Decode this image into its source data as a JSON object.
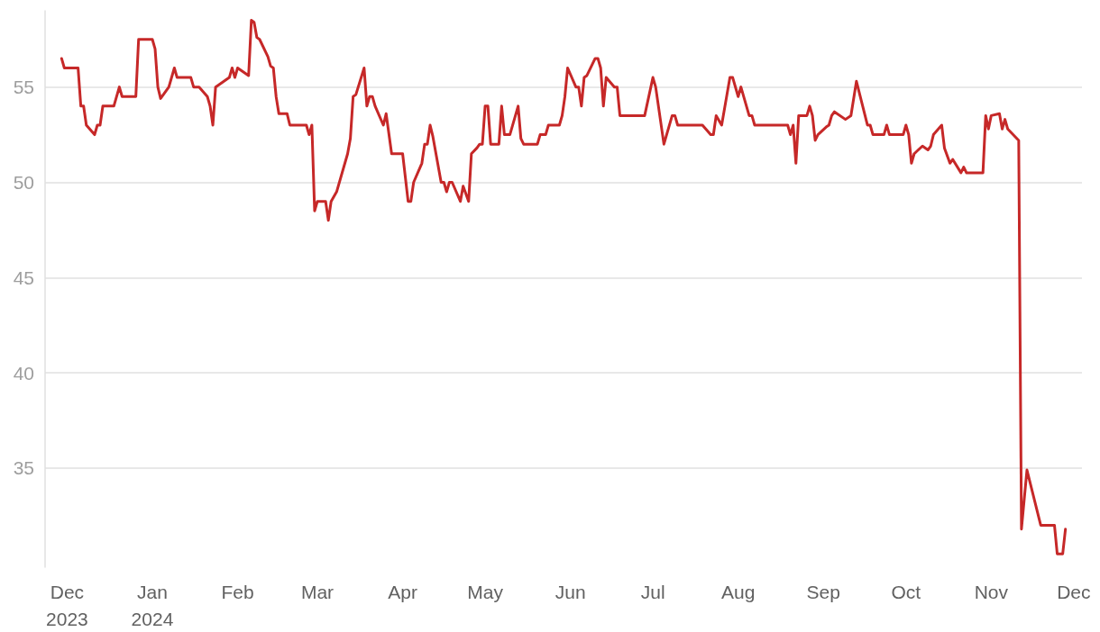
{
  "chart_data": {
    "type": "line",
    "x": [
      "2023-11-29",
      "2023-11-30",
      "2023-12-05",
      "2023-12-06",
      "2023-12-07",
      "2023-12-08",
      "2023-12-11",
      "2023-12-12",
      "2023-12-13",
      "2023-12-14",
      "2023-12-18",
      "2023-12-20",
      "2023-12-21",
      "2023-12-26",
      "2023-12-27",
      "2024-01-01",
      "2024-01-02",
      "2024-01-03",
      "2024-01-04",
      "2024-01-07",
      "2024-01-09",
      "2024-01-10",
      "2024-01-15",
      "2024-01-16",
      "2024-01-18",
      "2024-01-21",
      "2024-01-22",
      "2024-01-23",
      "2024-01-24",
      "2024-01-29",
      "2024-01-30",
      "2024-01-31",
      "2024-02-01",
      "2024-02-05",
      "2024-02-06",
      "2024-02-07",
      "2024-02-08",
      "2024-02-09",
      "2024-02-12",
      "2024-02-13",
      "2024-02-14",
      "2024-02-15",
      "2024-02-16",
      "2024-02-19",
      "2024-02-20",
      "2024-02-26",
      "2024-02-27",
      "2024-02-28",
      "2024-02-29",
      "2024-03-01",
      "2024-03-04",
      "2024-03-05",
      "2024-03-06",
      "2024-03-08",
      "2024-03-12",
      "2024-03-13",
      "2024-03-14",
      "2024-03-15",
      "2024-03-18",
      "2024-03-19",
      "2024-03-20",
      "2024-03-21",
      "2024-03-22",
      "2024-03-25",
      "2024-03-26",
      "2024-03-28",
      "2024-04-01",
      "2024-04-03",
      "2024-04-04",
      "2024-04-05",
      "2024-04-08",
      "2024-04-09",
      "2024-04-10",
      "2024-04-11",
      "2024-04-12",
      "2024-04-15",
      "2024-04-16",
      "2024-04-17",
      "2024-04-18",
      "2024-04-19",
      "2024-04-22",
      "2024-04-23",
      "2024-04-25",
      "2024-04-26",
      "2024-04-28",
      "2024-04-29",
      "2024-04-30",
      "2024-05-01",
      "2024-05-02",
      "2024-05-03",
      "2024-05-06",
      "2024-05-07",
      "2024-05-08",
      "2024-05-10",
      "2024-05-13",
      "2024-05-14",
      "2024-05-15",
      "2024-05-20",
      "2024-05-21",
      "2024-05-23",
      "2024-05-24",
      "2024-05-28",
      "2024-05-29",
      "2024-05-30",
      "2024-05-31",
      "2024-06-03",
      "2024-06-04",
      "2024-06-05",
      "2024-06-06",
      "2024-06-07",
      "2024-06-10",
      "2024-06-11",
      "2024-06-12",
      "2024-06-13",
      "2024-06-14",
      "2024-06-17",
      "2024-06-18",
      "2024-06-19",
      "2024-06-28",
      "2024-07-01",
      "2024-07-02",
      "2024-07-05",
      "2024-07-08",
      "2024-07-09",
      "2024-07-10",
      "2024-07-19",
      "2024-07-22",
      "2024-07-23",
      "2024-07-24",
      "2024-07-26",
      "2024-07-29",
      "2024-07-30",
      "2024-08-01",
      "2024-08-02",
      "2024-08-05",
      "2024-08-06",
      "2024-08-07",
      "2024-08-15",
      "2024-08-19",
      "2024-08-20",
      "2024-08-21",
      "2024-08-22",
      "2024-08-23",
      "2024-08-26",
      "2024-08-27",
      "2024-08-28",
      "2024-08-29",
      "2024-08-30",
      "2024-09-02",
      "2024-09-03",
      "2024-09-04",
      "2024-09-05",
      "2024-09-09",
      "2024-09-11",
      "2024-09-13",
      "2024-09-17",
      "2024-09-18",
      "2024-09-19",
      "2024-09-23",
      "2024-09-24",
      "2024-09-25",
      "2024-09-30",
      "2024-10-01",
      "2024-10-02",
      "2024-10-03",
      "2024-10-04",
      "2024-10-07",
      "2024-10-09",
      "2024-10-10",
      "2024-10-11",
      "2024-10-14",
      "2024-10-15",
      "2024-10-17",
      "2024-10-18",
      "2024-10-21",
      "2024-10-22",
      "2024-10-23",
      "2024-10-29",
      "2024-10-30",
      "2024-10-31",
      "2024-11-01",
      "2024-11-04",
      "2024-11-05",
      "2024-11-06",
      "2024-11-07",
      "2024-11-11",
      "2024-11-12",
      "2024-11-14",
      "2024-11-19",
      "2024-11-20",
      "2024-11-24",
      "2024-11-25",
      "2024-11-27",
      "2024-11-28"
    ],
    "series": [
      {
        "color": "#c62828",
        "values": [
          56.5,
          56.0,
          56.0,
          54.0,
          54.0,
          53.0,
          52.5,
          53.0,
          53.0,
          54.0,
          54.0,
          55.0,
          54.5,
          54.5,
          57.5,
          57.5,
          57.0,
          55.0,
          54.4,
          55.0,
          56.0,
          55.5,
          55.5,
          55.0,
          55.0,
          54.5,
          54.0,
          53.0,
          55.0,
          55.5,
          56.0,
          55.5,
          56.0,
          55.6,
          58.5,
          58.4,
          57.6,
          57.5,
          56.6,
          56.1,
          56.0,
          54.5,
          53.6,
          53.6,
          53.0,
          53.0,
          52.5,
          53.0,
          48.5,
          49.0,
          49.0,
          48.0,
          49.0,
          49.5,
          51.5,
          52.3,
          54.5,
          54.6,
          56.0,
          54.0,
          54.5,
          54.5,
          54.0,
          53.0,
          53.6,
          51.5,
          51.5,
          49.0,
          49.0,
          50.0,
          51.0,
          52.0,
          52.0,
          53.0,
          52.4,
          50.0,
          50.0,
          49.5,
          50.0,
          50.0,
          49.0,
          49.8,
          49.0,
          51.5,
          51.8,
          52.0,
          52.0,
          54.0,
          54.0,
          52.0,
          52.0,
          54.0,
          52.5,
          52.5,
          54.0,
          52.3,
          52.0,
          52.0,
          52.5,
          52.5,
          53.0,
          53.0,
          53.5,
          54.5,
          56.0,
          55.0,
          55.0,
          54.0,
          55.5,
          55.6,
          56.5,
          56.5,
          56.0,
          54.0,
          55.5,
          55.0,
          55.0,
          53.5,
          53.5,
          55.5,
          55.0,
          52.0,
          53.5,
          53.5,
          53.0,
          53.0,
          52.5,
          52.5,
          53.5,
          53.0,
          55.5,
          55.5,
          54.5,
          55.0,
          53.5,
          53.5,
          53.0,
          53.0,
          53.0,
          52.5,
          53.0,
          51.0,
          53.5,
          53.5,
          54.0,
          53.5,
          52.2,
          52.5,
          52.9,
          53.0,
          53.5,
          53.7,
          53.3,
          53.5,
          55.3,
          53.0,
          53.0,
          52.5,
          52.5,
          53.0,
          52.5,
          52.5,
          53.0,
          52.5,
          51.0,
          51.5,
          51.9,
          51.7,
          51.9,
          52.5,
          53.0,
          51.8,
          51.0,
          51.2,
          50.5,
          50.8,
          50.5,
          50.5,
          53.5,
          52.8,
          53.5,
          53.6,
          52.8,
          53.3,
          52.8,
          52.2,
          31.8,
          34.9,
          32.0,
          32.0,
          32.0,
          30.5,
          30.5,
          31.8
        ]
      }
    ],
    "xlim": [
      "2023-11-23",
      "2024-12-04"
    ],
    "xticks": [
      {
        "value": "2023-12-01",
        "label": "Dec\n2023"
      },
      {
        "value": "2024-01-01",
        "label": "Jan\n2024"
      },
      {
        "value": "2024-02-01",
        "label": "Feb"
      },
      {
        "value": "2024-03-01",
        "label": "Mar"
      },
      {
        "value": "2024-04-01",
        "label": "Apr"
      },
      {
        "value": "2024-05-01",
        "label": "May"
      },
      {
        "value": "2024-06-01",
        "label": "Jun"
      },
      {
        "value": "2024-07-01",
        "label": "Jul"
      },
      {
        "value": "2024-08-01",
        "label": "Aug"
      },
      {
        "value": "2024-09-01",
        "label": "Sep"
      },
      {
        "value": "2024-10-01",
        "label": "Oct"
      },
      {
        "value": "2024-11-01",
        "label": "Nov"
      },
      {
        "value": "2024-12-01",
        "label": "Dec"
      }
    ],
    "ylim": [
      29.8,
      59
    ],
    "yticks": [
      35,
      40,
      45,
      50,
      55
    ],
    "grid": "y",
    "marker": "none",
    "line_style": "solid"
  }
}
